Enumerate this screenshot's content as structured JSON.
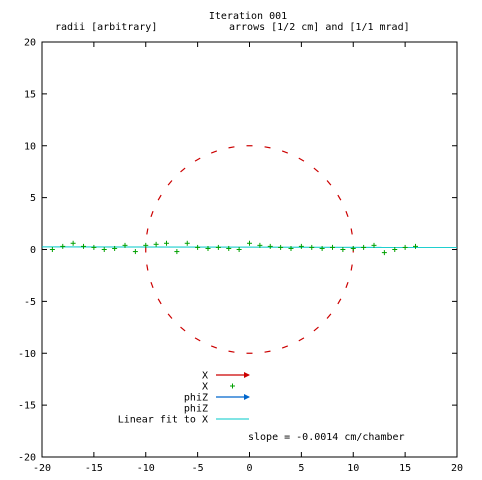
{
  "chart_data": {
    "type": "scatter",
    "title": "Iteration 001",
    "subtitle_left": "radii [arbitrary]",
    "subtitle_right": "arrows [1/2 cm] and [1/1 mrad]",
    "xlim": [
      -20,
      20
    ],
    "ylim": [
      -20,
      20
    ],
    "x_ticks": [
      -20,
      -15,
      -10,
      -5,
      0,
      5,
      10,
      15,
      20
    ],
    "y_ticks": [
      -20,
      -15,
      -10,
      -5,
      0,
      5,
      10,
      15,
      20
    ],
    "grid": false,
    "legend_placement": "bottom-center",
    "legend": [
      {
        "label": "X",
        "kind": "arrow",
        "color": "#cc0000"
      },
      {
        "label": "X",
        "kind": "plus",
        "color": "#00a000"
      },
      {
        "label": "phiZ",
        "kind": "arrow",
        "color": "#0066cc"
      },
      {
        "label": "phiZ",
        "kind": "none",
        "color": "#000000"
      },
      {
        "label": "Linear fit to X",
        "kind": "line",
        "color": "#00c8c8"
      }
    ],
    "annotation": "slope = -0.0014 cm/chamber",
    "circle_arrows": {
      "name": "X",
      "color": "#cc0000",
      "center": [
        0,
        0
      ],
      "radius": 10,
      "count": 36
    },
    "residuals": {
      "name": "X",
      "color": "#00a000",
      "x": [
        -19,
        -18,
        -17,
        -16,
        -15,
        -14,
        -13,
        -12,
        -11,
        -10,
        -9,
        -8,
        -7,
        -6,
        -5,
        -4,
        -3,
        -2,
        -1,
        0,
        1,
        2,
        3,
        4,
        5,
        6,
        7,
        8,
        9,
        10,
        11,
        12,
        13,
        14,
        15,
        16
      ],
      "y": [
        0.0,
        0.3,
        0.6,
        0.3,
        0.2,
        0.0,
        0.1,
        0.4,
        -0.2,
        0.4,
        0.5,
        0.6,
        -0.2,
        0.6,
        0.2,
        0.1,
        0.2,
        0.1,
        0.0,
        0.6,
        0.4,
        0.3,
        0.2,
        0.1,
        0.3,
        0.2,
        0.1,
        0.2,
        0.0,
        0.1,
        0.2,
        0.4,
        -0.3,
        0.0,
        0.2,
        0.3
      ]
    },
    "fit_line": {
      "name": "Linear fit to X",
      "color": "#00c8c8",
      "x": [
        -20,
        20
      ],
      "y": [
        0.25,
        0.2
      ]
    }
  }
}
